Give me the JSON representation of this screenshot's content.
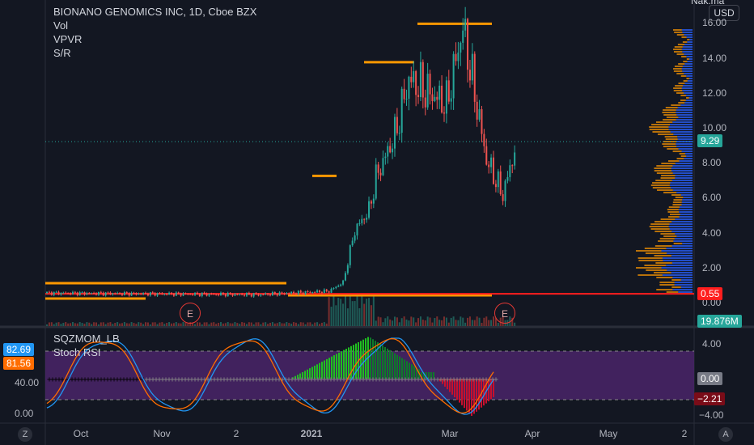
{
  "header": {
    "symbol_title": "BIONANO GENOMICS INC, 1D, Cboe BZX",
    "indicators": [
      "Vol",
      "VPVR",
      "S/R"
    ],
    "currency": "USD",
    "top_right_cut": "Nak.ma"
  },
  "price_axis": {
    "ticks": [
      "16.00",
      "14.00",
      "12.00",
      "10.00",
      "8.00",
      "6.00",
      "4.00",
      "2.00",
      "0.00"
    ],
    "last_price": "9.29",
    "sr_level": "0.55",
    "volume": "19.876M"
  },
  "indicator_pane": {
    "name": "SQZMOM_LB",
    "second": "Stoch RSI",
    "left_values": [
      "82.69",
      "81.56"
    ],
    "left_ticks": [
      "40.00",
      "0.00"
    ],
    "right_ticks": [
      "4.00",
      "−4.00"
    ],
    "right_values": [
      "0.00",
      "−2.21"
    ]
  },
  "time_axis": {
    "labels": [
      "Oct",
      "Nov",
      "2",
      "2021",
      "Mar",
      "Apr",
      "May",
      "2"
    ]
  },
  "earnings": [
    "E",
    "E"
  ],
  "corners": {
    "left": "Z",
    "right": "A"
  },
  "colors": {
    "background": "#131722",
    "up": "#26a69a",
    "down": "#ef5350",
    "sr_orange": "#ff9800",
    "sr_red": "#ff1e1e",
    "vpvr_blue": "#2962ff",
    "squeeze_green": "#20c020",
    "squeeze_dark_green": "#0e7a2a",
    "squeeze_red": "#c8102e",
    "stoch_band": "#4a2468"
  },
  "chart_data": {
    "type": "candlestick",
    "title": "BIONANO GENOMICS INC, 1D, Cboe BZX",
    "ylim": [
      0,
      16
    ],
    "sr_levels": [
      16.0,
      13.8,
      7.3,
      0.55
    ],
    "last_close": 9.29
  }
}
